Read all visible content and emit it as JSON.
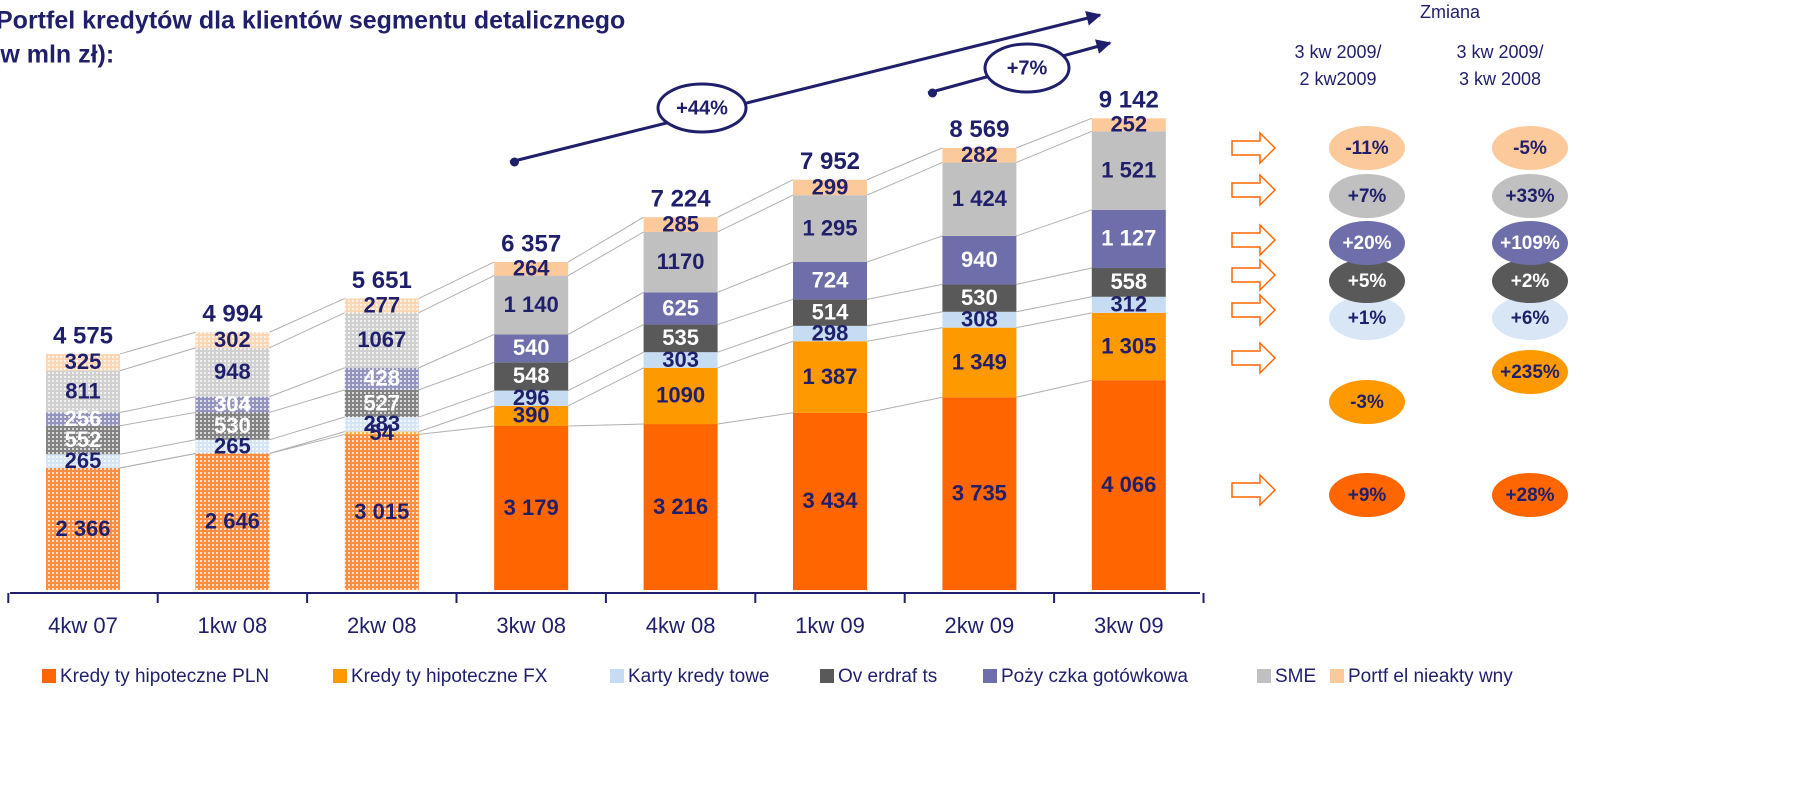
{
  "chart_data": {
    "type": "stacked_bar",
    "title": [
      "Portfel kredytów dla klientów segmentu detalicznego",
      "(w mln zł):"
    ],
    "categories": [
      "4kw 07",
      "1kw 08",
      "2kw 08",
      "3kw 08",
      "4kw 08",
      "1kw 09",
      "2kw 09",
      "3kw 09"
    ],
    "hatched": [
      true,
      true,
      true,
      false,
      false,
      false,
      false,
      false
    ],
    "series": [
      {
        "name": "Kredy ty hipoteczne PLN",
        "color": "#ff6600",
        "values": [
          2366,
          2646,
          3015,
          3179,
          3216,
          3434,
          3735,
          4066
        ],
        "value_labels": [
          "2 366",
          "2 646",
          "3 015",
          "3 179",
          "3 216",
          "3 434",
          "3 735",
          "4 066"
        ]
      },
      {
        "name": "Kredy ty hipoteczne FX",
        "color": "#ff9900",
        "values": [
          null,
          null,
          54,
          390,
          1090,
          1387,
          1349,
          1305
        ],
        "value_labels": [
          null,
          null,
          "54",
          "390",
          "1090",
          "1 387",
          "1 349",
          "1 305"
        ]
      },
      {
        "name": "Karty kredy towe",
        "color": "#c6dcf2",
        "values": [
          265,
          265,
          283,
          296,
          303,
          298,
          308,
          312
        ]
      },
      {
        "name": "Ov erdraf ts",
        "color": "#595959",
        "values": [
          552,
          530,
          527,
          548,
          535,
          514,
          530,
          558
        ]
      },
      {
        "name": "Poży czka gotówkowa",
        "color": "#6e6eaa",
        "values": [
          256,
          304,
          428,
          540,
          625,
          724,
          940,
          1127
        ],
        "value_labels": [
          "256",
          "304",
          "428",
          "540",
          "625",
          "724",
          "940",
          "1 127"
        ]
      },
      {
        "name": "SME",
        "color": "#c0c0c0",
        "values": [
          811,
          948,
          1067,
          1140,
          1170,
          1295,
          1424,
          1521
        ],
        "value_labels": [
          "811",
          "948",
          "1067",
          "1 140",
          "1170",
          "1 295",
          "1 424",
          "1 521"
        ]
      },
      {
        "name": "Portf el nieakty wny",
        "color": "#fcc99b",
        "values": [
          325,
          302,
          277,
          264,
          285,
          299,
          282,
          252
        ]
      }
    ],
    "totals": [
      4575,
      4994,
      5651,
      6357,
      7224,
      7952,
      8569,
      9142
    ],
    "total_labels": [
      "4 575",
      "4 994",
      "5 651",
      "6 357",
      "7 224",
      "7 952",
      "8 569",
      "9 142"
    ],
    "annotations": [
      "+44%",
      "+7%"
    ],
    "changes": {
      "title": "Zmiana",
      "headers": [
        [
          "3 kw 2009/",
          "2 kw2009"
        ],
        [
          "3 kw 2009/",
          "3 kw 2008"
        ]
      ],
      "rows": [
        [
          "+9%",
          "+28%"
        ],
        [
          "-3%",
          "+235%"
        ],
        [
          "+1%",
          "+6%"
        ],
        [
          "+5%",
          "+2%"
        ],
        [
          "+20%",
          "+109%"
        ],
        [
          "+7%",
          "+33%"
        ],
        [
          "-11%",
          "-5%"
        ]
      ]
    },
    "legend": "bottom"
  }
}
